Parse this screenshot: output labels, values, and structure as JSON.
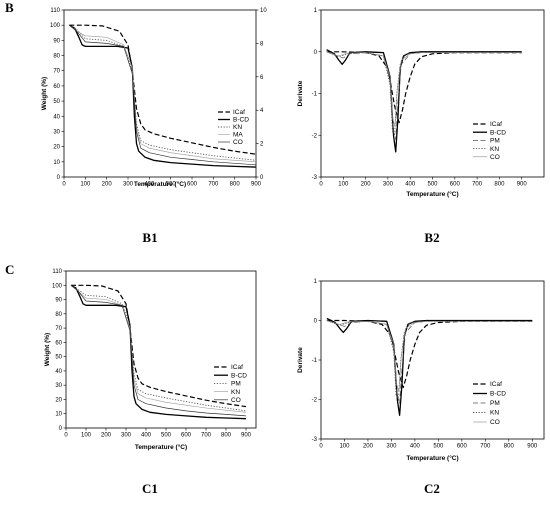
{
  "sections": [
    {
      "letter": "B",
      "panels": [
        "B1",
        "B2"
      ]
    },
    {
      "letter": "C",
      "panels": [
        "C1",
        "C2"
      ]
    }
  ],
  "chart_data": [
    {
      "id": "B1",
      "caption": "B1",
      "type": "line",
      "xlabel": "Temperature (°C)",
      "ylabel": "Weight (%)",
      "xlim": [
        0,
        900
      ],
      "ylim": [
        0,
        110
      ],
      "xticks": [
        0,
        100,
        200,
        300,
        400,
        500,
        600,
        700,
        800,
        900
      ],
      "yticks": [
        0,
        10,
        20,
        30,
        40,
        50,
        60,
        70,
        80,
        90,
        100,
        110
      ],
      "y2lim": [
        0,
        10
      ],
      "y2ticks": [
        0,
        2,
        4,
        6,
        8,
        10
      ],
      "legend": "right",
      "series": [
        {
          "name": "ICaf",
          "style": "dash",
          "width": 1.2,
          "color": "#000000",
          "x": [
            25,
            100,
            180,
            260,
            300,
            320,
            340,
            360,
            380,
            420,
            500,
            600,
            700,
            800,
            900
          ],
          "y": [
            100,
            100,
            99.5,
            96,
            87,
            70,
            45,
            35,
            31,
            28.5,
            25.5,
            22.5,
            19.5,
            17,
            15
          ]
        },
        {
          "name": "B-CD",
          "style": "solid",
          "width": 1.3,
          "color": "#000000",
          "x": [
            25,
            50,
            70,
            85,
            100,
            150,
            250,
            300,
            320,
            330,
            340,
            350,
            380,
            420,
            500,
            600,
            700,
            800,
            900
          ],
          "y": [
            100,
            98,
            92,
            87,
            86,
            86,
            86,
            85,
            72,
            40,
            22,
            17,
            13,
            11,
            9.5,
            8.5,
            7.5,
            7,
            6.5
          ]
        },
        {
          "name": "KN",
          "style": "dot",
          "width": 0.9,
          "color": "#555555",
          "x": [
            25,
            60,
            100,
            200,
            280,
            320,
            340,
            360,
            400,
            500,
            600,
            700,
            800,
            900
          ],
          "y": [
            100,
            97,
            91,
            90,
            86,
            70,
            35,
            24,
            21,
            18,
            16,
            14,
            12.5,
            11
          ]
        },
        {
          "name": "MA",
          "style": "solid",
          "width": 0.6,
          "color": "#9a9a9a",
          "x": [
            25,
            60,
            100,
            200,
            280,
            320,
            340,
            360,
            400,
            500,
            600,
            700,
            800,
            900
          ],
          "y": [
            100,
            96,
            93,
            92,
            87,
            72,
            33,
            22,
            19,
            16,
            14,
            12,
            11,
            10
          ]
        },
        {
          "name": "CO",
          "style": "solid",
          "width": 0.7,
          "color": "#333333",
          "x": [
            25,
            60,
            100,
            200,
            280,
            320,
            340,
            360,
            400,
            500,
            600,
            700,
            800,
            900
          ],
          "y": [
            100,
            96,
            89,
            88,
            86,
            68,
            30,
            19,
            16,
            13,
            11.5,
            10,
            9,
            8
          ]
        }
      ]
    },
    {
      "id": "B2",
      "caption": "B2",
      "type": "line",
      "xlabel": "Temperature (°C)",
      "ylabel": "Derivate",
      "xlim": [
        0,
        1000
      ],
      "ylim": [
        -3,
        1
      ],
      "xticks": [
        0,
        100,
        200,
        300,
        400,
        500,
        600,
        700,
        800,
        900
      ],
      "yticks": [
        -3,
        -2,
        -1,
        0,
        1
      ],
      "legend": "right",
      "series": [
        {
          "name": "ICaf",
          "style": "dash",
          "width": 1.2,
          "color": "#000000",
          "x": [
            25,
            100,
            200,
            260,
            300,
            330,
            350,
            365,
            380,
            400,
            420,
            450,
            500,
            600,
            900
          ],
          "y": [
            0,
            0,
            -0.02,
            -0.1,
            -0.4,
            -1.3,
            -1.7,
            -1.4,
            -1.0,
            -0.6,
            -0.3,
            -0.12,
            -0.05,
            -0.02,
            -0.02
          ]
        },
        {
          "name": "B-CD",
          "style": "solid",
          "width": 1.3,
          "color": "#000000",
          "x": [
            25,
            60,
            80,
            95,
            110,
            130,
            200,
            280,
            310,
            325,
            335,
            345,
            355,
            370,
            400,
            450,
            600,
            900
          ],
          "y": [
            0.05,
            -0.05,
            -0.2,
            -0.3,
            -0.2,
            -0.02,
            0,
            -0.02,
            -0.6,
            -2.0,
            -2.4,
            -1.6,
            -0.4,
            -0.1,
            -0.02,
            0,
            0,
            0
          ]
        },
        {
          "name": "PM",
          "style": "dash",
          "width": 0.7,
          "color": "#555555",
          "x": [
            25,
            70,
            100,
            130,
            200,
            280,
            310,
            325,
            335,
            345,
            360,
            400,
            450,
            900
          ],
          "y": [
            0,
            -0.1,
            -0.15,
            -0.05,
            -0.02,
            -0.1,
            -0.7,
            -1.9,
            -2.1,
            -1.2,
            -0.3,
            -0.05,
            -0.02,
            -0.02
          ]
        },
        {
          "name": "KN",
          "style": "dot",
          "width": 0.9,
          "color": "#555555",
          "x": [
            25,
            80,
            120,
            200,
            280,
            310,
            320,
            330,
            340,
            355,
            380,
            450,
            900
          ],
          "y": [
            0,
            -0.12,
            -0.05,
            -0.02,
            -0.1,
            -0.8,
            -1.9,
            -2.0,
            -1.0,
            -0.3,
            -0.05,
            -0.02,
            -0.02
          ]
        },
        {
          "name": "CO",
          "style": "solid",
          "width": 0.6,
          "color": "#8a8a8a",
          "x": [
            25,
            80,
            120,
            200,
            280,
            310,
            322,
            332,
            342,
            360,
            400,
            450,
            900
          ],
          "y": [
            0,
            -0.1,
            -0.03,
            -0.02,
            -0.1,
            -0.6,
            -1.6,
            -1.8,
            -0.9,
            -0.2,
            -0.05,
            -0.02,
            -0.02
          ]
        }
      ]
    },
    {
      "id": "C1",
      "caption": "C1",
      "type": "line",
      "xlabel": "Temperature (°C)",
      "ylabel": "Weight (%)",
      "xlim": [
        0,
        950
      ],
      "ylim": [
        0,
        110
      ],
      "xticks": [
        0,
        100,
        200,
        300,
        400,
        500,
        600,
        700,
        800,
        900
      ],
      "yticks": [
        0,
        10,
        20,
        30,
        40,
        50,
        60,
        70,
        80,
        90,
        100,
        110
      ],
      "legend": "right",
      "series": [
        {
          "name": "ICaf",
          "style": "dash",
          "width": 1.2,
          "color": "#000000",
          "x": [
            25,
            100,
            180,
            260,
            300,
            320,
            340,
            360,
            380,
            420,
            500,
            600,
            700,
            800,
            900
          ],
          "y": [
            100,
            100,
            99.5,
            96,
            87,
            70,
            45,
            35,
            31,
            28.5,
            25.5,
            22.5,
            19.5,
            17,
            15
          ]
        },
        {
          "name": "B-CD",
          "style": "solid",
          "width": 1.3,
          "color": "#000000",
          "x": [
            25,
            50,
            70,
            85,
            100,
            150,
            250,
            300,
            320,
            330,
            340,
            350,
            380,
            420,
            500,
            600,
            700,
            800,
            900
          ],
          "y": [
            100,
            98,
            92,
            87,
            86,
            86,
            86,
            85,
            72,
            40,
            22,
            17,
            13,
            11,
            9.5,
            8.5,
            7.5,
            7,
            6.5
          ]
        },
        {
          "name": "PM",
          "style": "dot",
          "width": 0.9,
          "color": "#555555",
          "x": [
            25,
            60,
            100,
            200,
            280,
            320,
            340,
            360,
            400,
            500,
            600,
            700,
            800,
            900
          ],
          "y": [
            100,
            97,
            93,
            92,
            87,
            72,
            38,
            27,
            24,
            21,
            18.5,
            16,
            14,
            12
          ]
        },
        {
          "name": "KN",
          "style": "solid",
          "width": 0.6,
          "color": "#9a9a9a",
          "x": [
            25,
            60,
            100,
            200,
            280,
            320,
            340,
            360,
            400,
            500,
            600,
            700,
            800,
            900
          ],
          "y": [
            100,
            96,
            91,
            90,
            86,
            70,
            34,
            24,
            21,
            18,
            16,
            14,
            12.5,
            11
          ]
        },
        {
          "name": "CO",
          "style": "solid",
          "width": 0.7,
          "color": "#333333",
          "x": [
            25,
            60,
            100,
            200,
            280,
            320,
            340,
            360,
            400,
            500,
            600,
            700,
            800,
            900
          ],
          "y": [
            100,
            96,
            89,
            88,
            86,
            68,
            30,
            20,
            17,
            14,
            12,
            10.5,
            9.5,
            8.5
          ]
        }
      ]
    },
    {
      "id": "C2",
      "caption": "C2",
      "type": "line",
      "xlabel": "Temperature (°C)",
      "ylabel": "Derivate",
      "xlim": [
        0,
        950
      ],
      "ylim": [
        -3,
        1
      ],
      "xticks": [
        0,
        100,
        200,
        300,
        400,
        500,
        600,
        700,
        800,
        900
      ],
      "yticks": [
        -3,
        -2,
        -1,
        0,
        1
      ],
      "legend": "right",
      "series": [
        {
          "name": "ICaf",
          "style": "dash",
          "width": 1.2,
          "color": "#000000",
          "x": [
            25,
            100,
            200,
            260,
            300,
            330,
            350,
            365,
            380,
            400,
            420,
            450,
            500,
            600,
            900
          ],
          "y": [
            0,
            0,
            -0.02,
            -0.1,
            -0.4,
            -1.3,
            -1.7,
            -1.4,
            -1.0,
            -0.6,
            -0.3,
            -0.12,
            -0.05,
            -0.02,
            -0.02
          ]
        },
        {
          "name": "B-CD",
          "style": "solid",
          "width": 1.3,
          "color": "#000000",
          "x": [
            25,
            60,
            80,
            95,
            110,
            130,
            200,
            280,
            310,
            325,
            335,
            345,
            355,
            370,
            400,
            450,
            600,
            900
          ],
          "y": [
            0.05,
            -0.05,
            -0.2,
            -0.3,
            -0.2,
            -0.02,
            0,
            -0.02,
            -0.6,
            -2.0,
            -2.4,
            -1.6,
            -0.4,
            -0.1,
            -0.02,
            0,
            0,
            0
          ]
        },
        {
          "name": "PM",
          "style": "dash",
          "width": 0.7,
          "color": "#555555",
          "x": [
            25,
            70,
            100,
            130,
            200,
            280,
            310,
            325,
            335,
            345,
            360,
            400,
            450,
            900
          ],
          "y": [
            0,
            -0.1,
            -0.15,
            -0.05,
            -0.02,
            -0.1,
            -0.7,
            -1.9,
            -2.1,
            -1.2,
            -0.3,
            -0.05,
            -0.02,
            -0.02
          ]
        },
        {
          "name": "KN",
          "style": "dot",
          "width": 0.9,
          "color": "#555555",
          "x": [
            25,
            80,
            120,
            200,
            280,
            310,
            320,
            330,
            340,
            355,
            380,
            450,
            900
          ],
          "y": [
            0,
            -0.12,
            -0.05,
            -0.02,
            -0.1,
            -0.8,
            -1.9,
            -2.0,
            -1.0,
            -0.3,
            -0.05,
            -0.02,
            -0.02
          ]
        },
        {
          "name": "CO",
          "style": "solid",
          "width": 0.6,
          "color": "#8a8a8a",
          "x": [
            25,
            80,
            120,
            200,
            280,
            310,
            322,
            332,
            342,
            360,
            400,
            450,
            900
          ],
          "y": [
            0,
            -0.1,
            -0.03,
            -0.02,
            -0.1,
            -0.6,
            -1.6,
            -1.8,
            -0.9,
            -0.2,
            -0.05,
            -0.02,
            -0.02
          ]
        }
      ]
    }
  ]
}
